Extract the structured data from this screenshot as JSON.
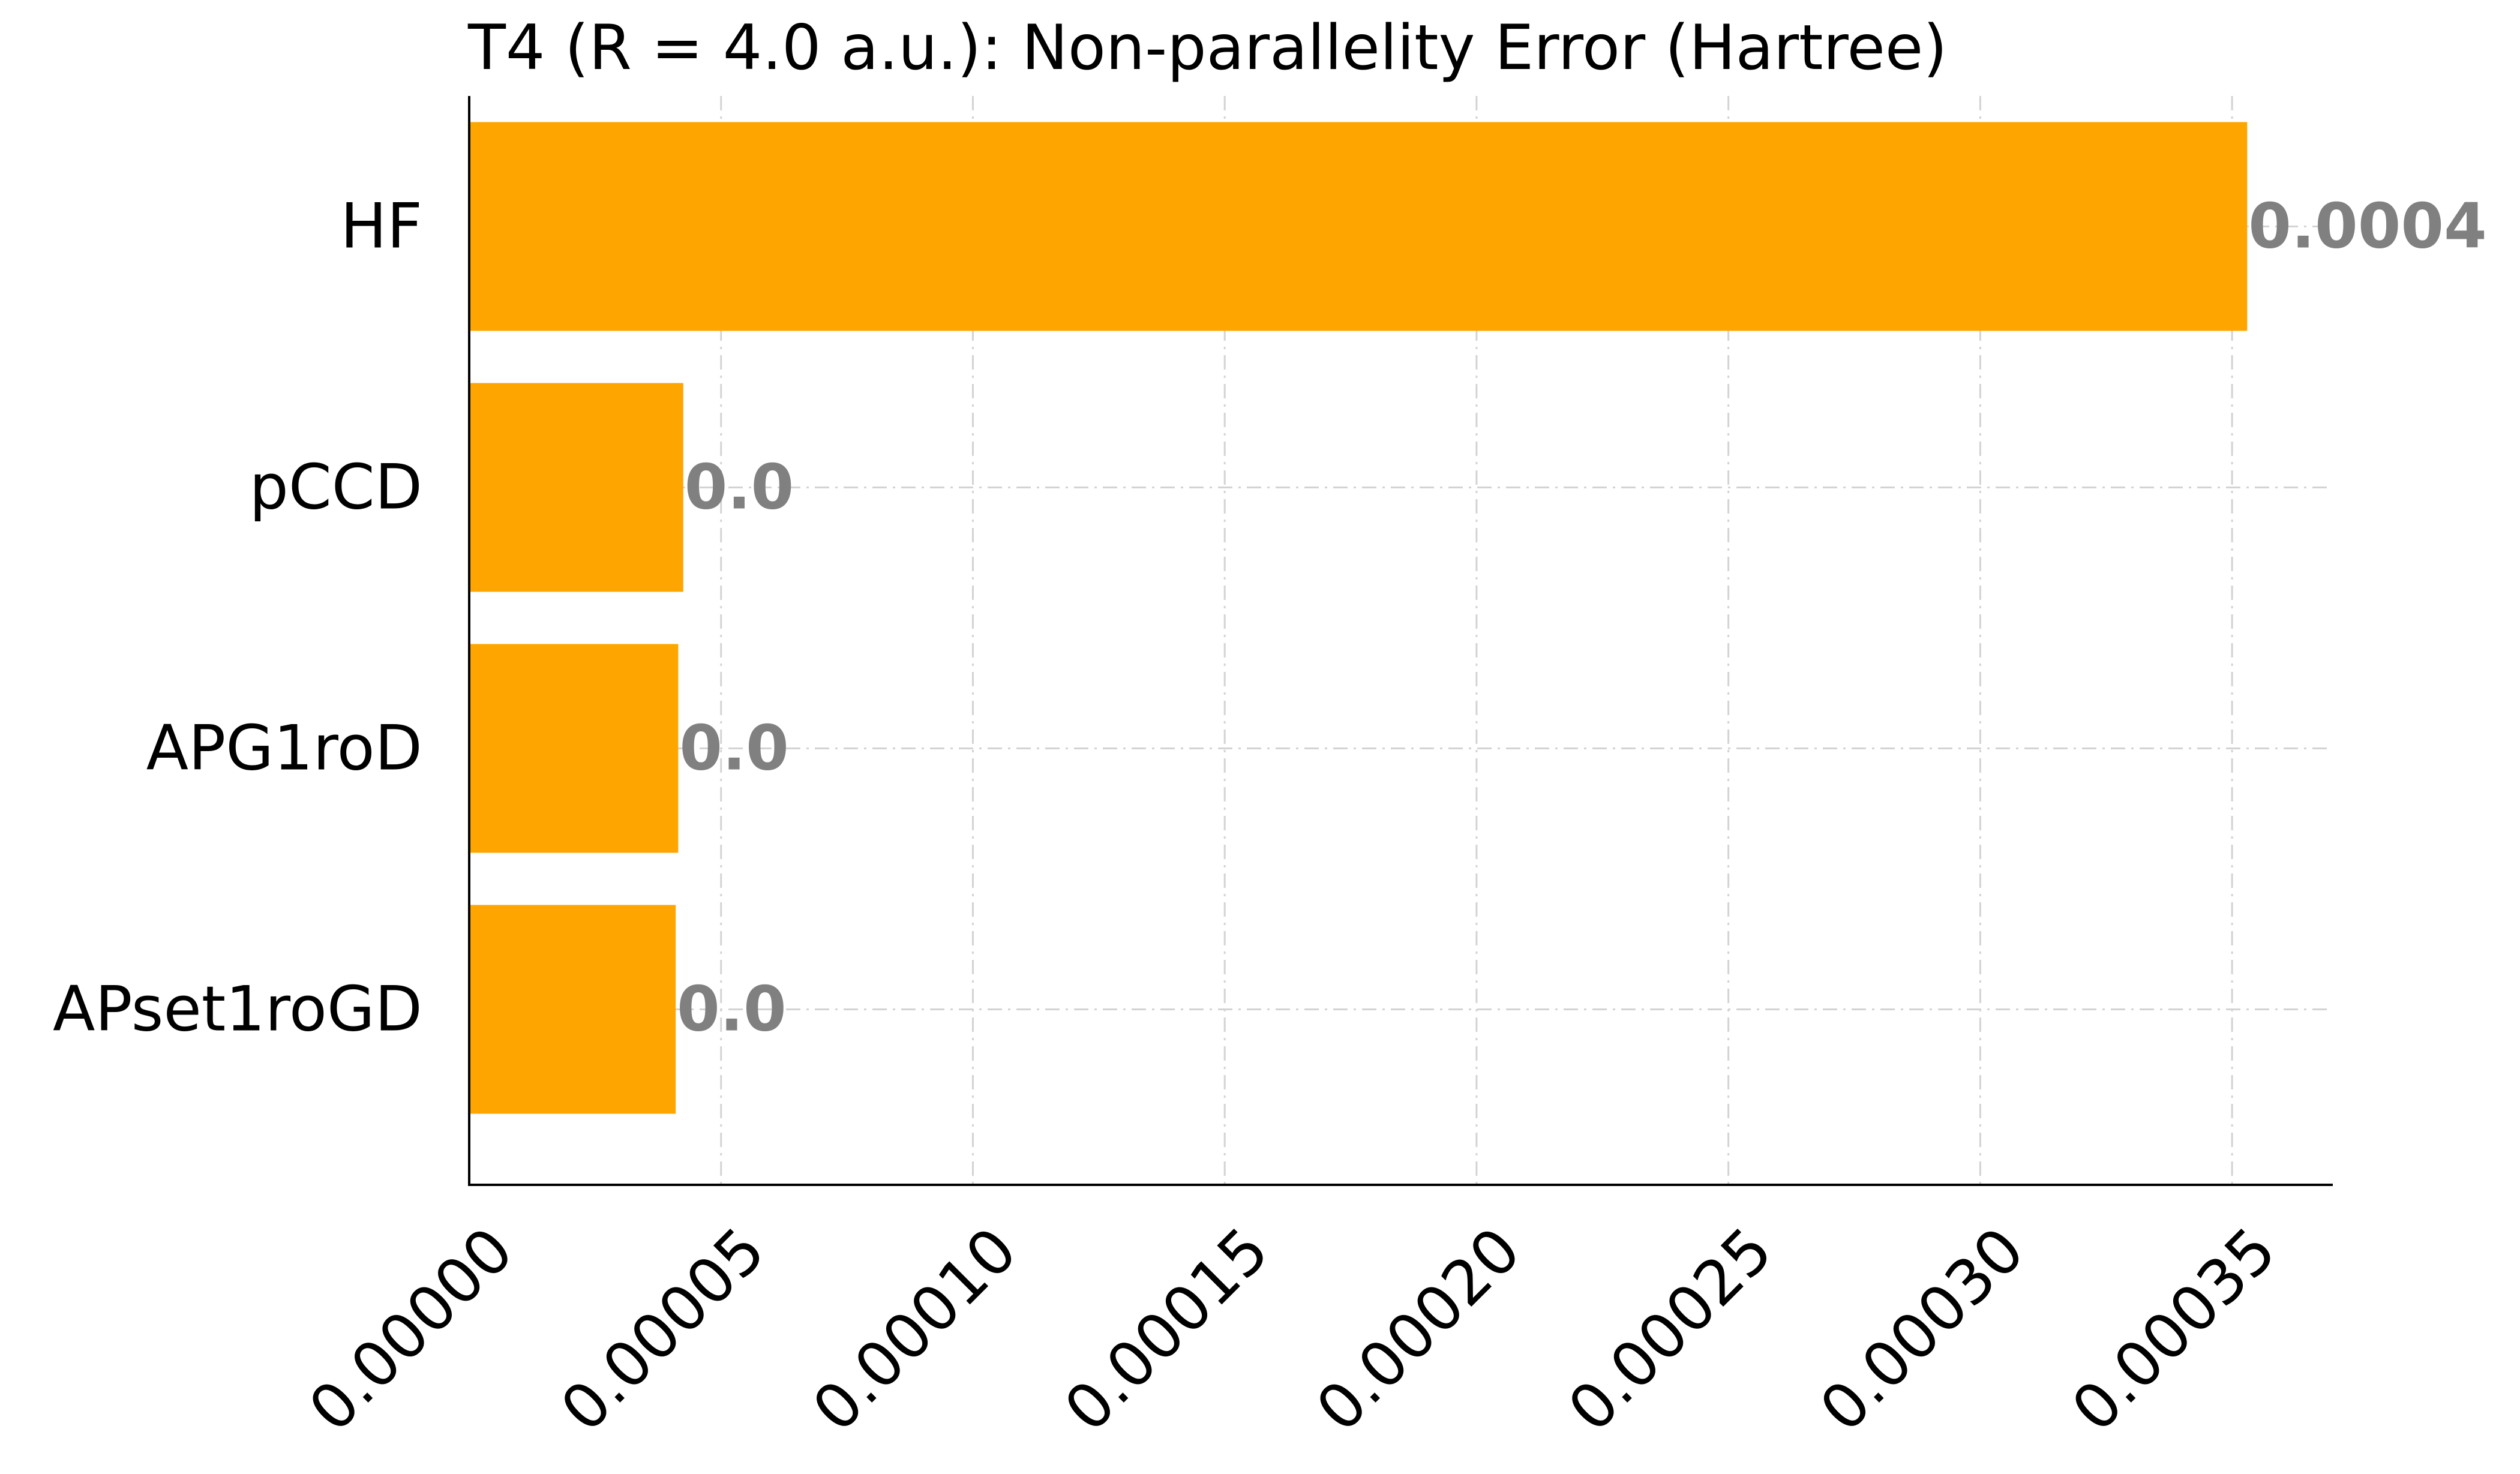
{
  "chart_data": {
    "type": "bar",
    "orientation": "horizontal",
    "title": "T4 (R = 4.0 a.u.): Non-parallelity Error (Hartree)",
    "xlabel": "",
    "ylabel": "",
    "categories": [
      "HF",
      "pCCD",
      "APG1roD",
      "APset1roGD"
    ],
    "values": [
      0.000353,
      4.25e-05,
      4.15e-05,
      4.1e-05
    ],
    "value_labels": [
      "0.0004",
      "0.0",
      "0.0",
      "0.0"
    ],
    "xlim": [
      0,
      0.00037
    ],
    "xticks": [
      0,
      5e-05,
      0.0001,
      0.00015,
      0.0002,
      0.00025,
      0.0003,
      0.00035
    ],
    "xtick_labels": [
      "0.00000",
      "0.00005",
      "0.00010",
      "0.00015",
      "0.00020",
      "0.00025",
      "0.00030",
      "0.00035"
    ],
    "bar_color": "#ffa500",
    "label_color": "#808080",
    "grid": true
  }
}
